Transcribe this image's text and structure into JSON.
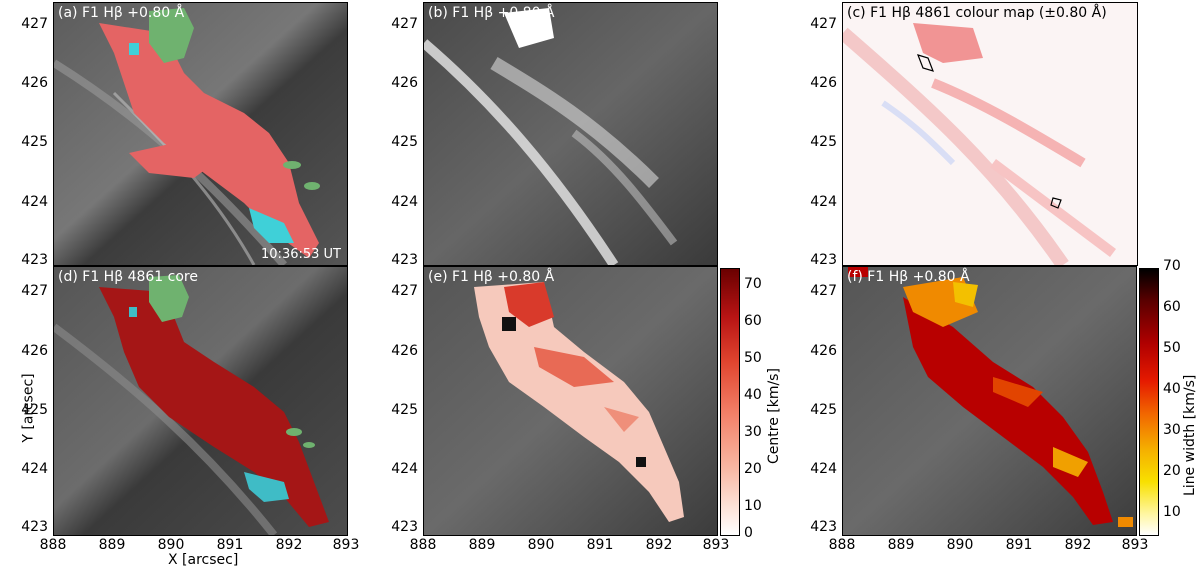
{
  "panels": {
    "a": {
      "title": "(a) F1 Hβ +0.80 Å",
      "timestamp": "10:36:53 UT"
    },
    "b": {
      "title": "(b) F1 Hβ +0.80 Å"
    },
    "c": {
      "title": "(c) F1 Hβ 4861 colour map (±0.80 Å)"
    },
    "d": {
      "title": "(d) F1 Hβ 4861 core"
    },
    "e": {
      "title": "(e) F1 Hβ +0.80 Å"
    },
    "f": {
      "title": "(f) F1 Hβ +0.80 Å"
    }
  },
  "axes": {
    "xlabel": "X [arcsec]",
    "ylabel": "Y [arcsec]",
    "yticks": [
      "427",
      "426",
      "425",
      "424",
      "423"
    ],
    "xticks": [
      "888",
      "889",
      "890",
      "891",
      "892",
      "893"
    ]
  },
  "colorbars": {
    "centre": {
      "label": "Centre [km/s]",
      "ticks": [
        "70",
        "60",
        "50",
        "40",
        "30",
        "20",
        "10",
        "0"
      ],
      "range": [
        0,
        73
      ]
    },
    "width": {
      "label": "Line width [km/s]",
      "ticks": [
        "70",
        "60",
        "50",
        "40",
        "30",
        "20",
        "10"
      ],
      "range": [
        5,
        70
      ]
    }
  },
  "colors": {
    "mask_red": "#e46464",
    "mask_dark_red": "#a51616",
    "mask_green": "#6fb26f",
    "mask_cyan": "#3fd0d8"
  }
}
